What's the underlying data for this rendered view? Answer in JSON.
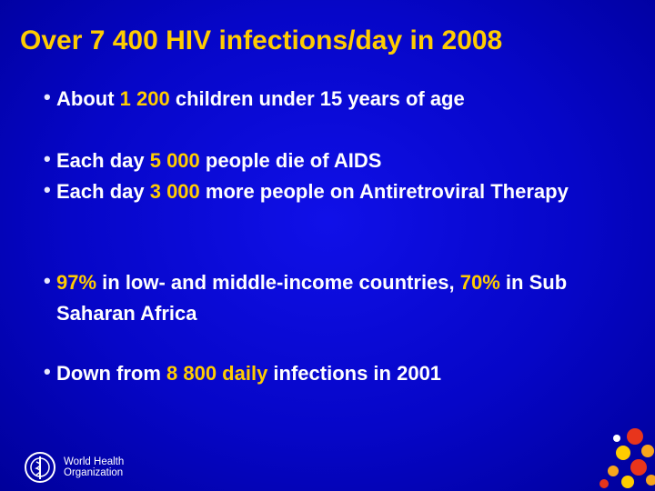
{
  "title": "Over 7 400 HIV infections/day in 2008",
  "groups": [
    [
      {
        "segments": [
          {
            "text": "About ",
            "highlight": false
          },
          {
            "text": "1 200",
            "highlight": true
          },
          {
            "text": " children under 15 years of age",
            "highlight": false
          }
        ]
      }
    ],
    [
      {
        "segments": [
          {
            "text": "Each day ",
            "highlight": false
          },
          {
            "text": "5 000",
            "highlight": true
          },
          {
            "text": " people die of AIDS",
            "highlight": false
          }
        ]
      },
      {
        "segments": [
          {
            "text": "Each day ",
            "highlight": false
          },
          {
            "text": "3 000",
            "highlight": true
          },
          {
            "text": " more people on Antiretroviral Therapy",
            "highlight": false
          }
        ]
      }
    ],
    [
      {
        "segments": [
          {
            "text": "97%",
            "highlight": true
          },
          {
            "text": " in low- and middle-income countries, ",
            "highlight": false
          },
          {
            "text": "70%",
            "highlight": true
          },
          {
            "text": " in Sub Saharan Africa",
            "highlight": false
          }
        ]
      }
    ],
    [
      {
        "segments": [
          {
            "text": "Down from ",
            "highlight": false
          },
          {
            "text": "8 800 daily",
            "highlight": true
          },
          {
            "text": " infections in 2001",
            "highlight": false
          }
        ]
      }
    ]
  ],
  "footer": {
    "organization": [
      "World Health",
      "Organization"
    ]
  }
}
